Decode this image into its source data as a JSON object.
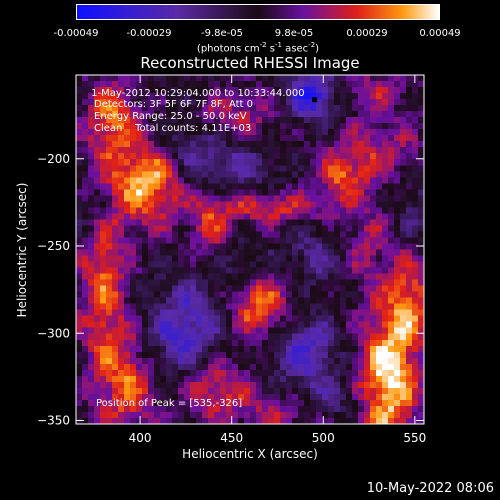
{
  "colorbar": {
    "ticks": [
      "-0.00049",
      "-0.00029",
      "-9.8e-05",
      "9.8e-05",
      "0.00029",
      "0.00049"
    ],
    "unit_prefix": "(photons cm",
    "unit_sup1": "-2",
    "unit_mid1": " s",
    "unit_sup2": "-1",
    "unit_mid2": " asec",
    "unit_sup3": "-2",
    "unit_suffix": ")"
  },
  "chart_data": {
    "type": "heatmap",
    "title": "Reconstructed RHESSI Image",
    "xlabel": "Heliocentric X (arcsec)",
    "ylabel": "Heliocentric Y (arcsec)",
    "xlim": [
      365,
      555
    ],
    "ylim": [
      -352,
      -152
    ],
    "x_ticks": [
      400,
      450,
      500,
      550
    ],
    "y_ticks": [
      -200,
      -250,
      -300,
      -350
    ],
    "value_range": [
      -0.00049,
      0.00049
    ],
    "peak_position": [
      535,
      -326
    ],
    "annotations": {
      "time_range": " 1-May-2012 10:29:04.000 to 10:33:44.000",
      "detectors": "Detectors: 3F 5F 6F 7F 8F, Att 0",
      "energy": "Energy Range: 25.0 - 50.0 keV",
      "clean": "Clean    Total counts: 4.11E+03",
      "peak": "Position of Peak = [535,-326]"
    },
    "blobs": [
      {
        "x": 405,
        "y": -212,
        "sx": 14,
        "sy": 18,
        "v": 0.00046
      },
      {
        "x": 385,
        "y": -175,
        "sx": 10,
        "sy": 14,
        "v": 0.0003
      },
      {
        "x": 380,
        "y": -270,
        "sx": 9,
        "sy": 45,
        "v": 0.00032
      },
      {
        "x": 395,
        "y": -330,
        "sx": 10,
        "sy": 22,
        "v": 0.0003
      },
      {
        "x": 445,
        "y": -175,
        "sx": 20,
        "sy": 10,
        "v": 0.00024
      },
      {
        "x": 438,
        "y": -240,
        "sx": 8,
        "sy": 14,
        "v": 0.00022
      },
      {
        "x": 470,
        "y": -228,
        "sx": 22,
        "sy": 7,
        "v": 0.00026
      },
      {
        "x": 465,
        "y": -285,
        "sx": 12,
        "sy": 14,
        "v": 0.00036
      },
      {
        "x": 440,
        "y": -330,
        "sx": 14,
        "sy": 14,
        "v": 0.0003
      },
      {
        "x": 510,
        "y": -210,
        "sx": 10,
        "sy": 10,
        "v": 0.00026
      },
      {
        "x": 530,
        "y": -195,
        "sx": 18,
        "sy": 14,
        "v": 0.0002
      },
      {
        "x": 520,
        "y": -250,
        "sx": 12,
        "sy": 16,
        "v": 0.00022
      },
      {
        "x": 535,
        "y": -326,
        "sx": 12,
        "sy": 30,
        "v": 0.00049
      },
      {
        "x": 548,
        "y": -280,
        "sx": 8,
        "sy": 18,
        "v": 0.00028
      },
      {
        "x": 520,
        "y": -160,
        "sx": 20,
        "sy": 8,
        "v": 0.00018
      },
      {
        "x": 480,
        "y": -345,
        "sx": 18,
        "sy": 8,
        "v": 0.0002
      },
      {
        "x": 495,
        "y": -163,
        "sx": 10,
        "sy": 10,
        "v": -0.00049
      },
      {
        "x": 425,
        "y": -190,
        "sx": 14,
        "sy": 18,
        "v": -0.00025
      },
      {
        "x": 425,
        "y": -300,
        "sx": 16,
        "sy": 20,
        "v": -0.00032
      },
      {
        "x": 490,
        "y": -310,
        "sx": 14,
        "sy": 14,
        "v": -0.0003
      },
      {
        "x": 500,
        "y": -255,
        "sx": 14,
        "sy": 12,
        "v": -0.00022
      },
      {
        "x": 375,
        "y": -230,
        "sx": 10,
        "sy": 14,
        "v": -0.00018
      },
      {
        "x": 455,
        "y": -205,
        "sx": 16,
        "sy": 10,
        "v": -0.00016
      },
      {
        "x": 505,
        "y": -340,
        "sx": 14,
        "sy": 8,
        "v": -0.0002
      },
      {
        "x": 550,
        "y": -230,
        "sx": 8,
        "sy": 14,
        "v": -0.00014
      },
      {
        "x": 455,
        "y": -260,
        "sx": 10,
        "sy": 10,
        "v": -0.00015
      }
    ]
  },
  "colors": {
    "neg_max": "#1010ff",
    "neg_mid": "#5a2aa8",
    "zero": "#1a0a14",
    "pos_low": "#6a10a0",
    "pos_mid": "#e02018",
    "pos_high": "#ff9a10",
    "pos_max": "#ffffff"
  },
  "footer": {
    "date_stamp": "10-May-2022 08:06"
  }
}
